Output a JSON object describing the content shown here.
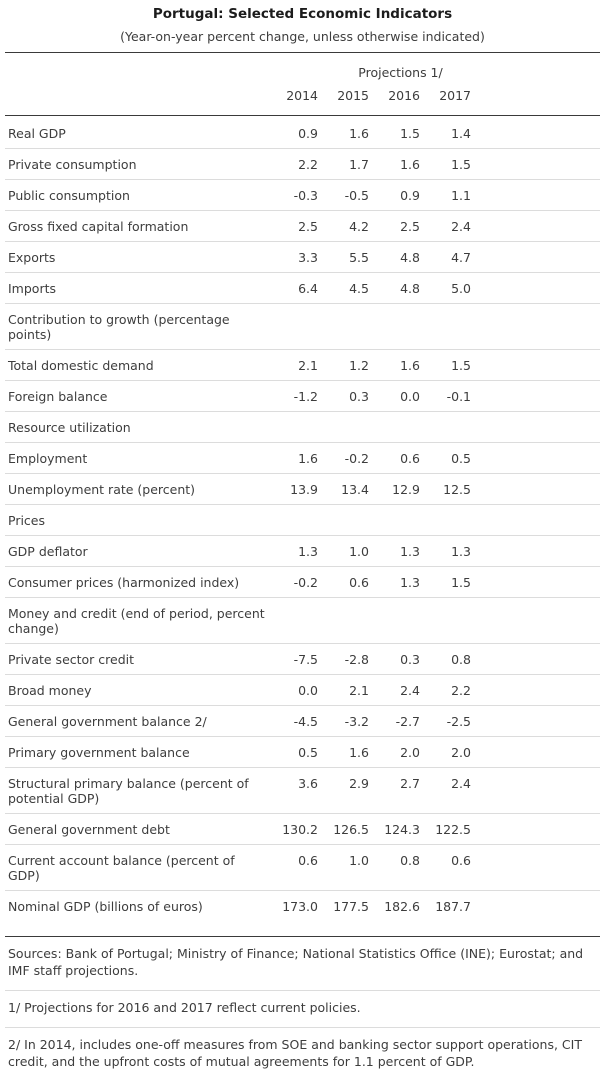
{
  "title": "Portugal: Selected Economic Indicators",
  "subtitle": "(Year-on-year percent change, unless otherwise indicated)",
  "table": {
    "projections_label": "Projections 1/",
    "years": [
      "2014",
      "2015",
      "2016",
      "2017"
    ],
    "rows": [
      {
        "label": "Real GDP",
        "values": [
          "0.9",
          "1.6",
          "1.5",
          "1.4"
        ]
      },
      {
        "label": "Private consumption",
        "values": [
          "2.2",
          "1.7",
          "1.6",
          "1.5"
        ]
      },
      {
        "label": "Public consumption",
        "values": [
          "-0.3",
          "-0.5",
          "0.9",
          "1.1"
        ]
      },
      {
        "label": "Gross fixed capital formation",
        "values": [
          "2.5",
          "4.2",
          "2.5",
          "2.4"
        ]
      },
      {
        "label": "Exports",
        "values": [
          "3.3",
          "5.5",
          "4.8",
          "4.7"
        ]
      },
      {
        "label": "Imports",
        "values": [
          "6.4",
          "4.5",
          "4.8",
          "5.0"
        ]
      },
      {
        "label": "Contribution to growth (percentage points)",
        "values": []
      },
      {
        "label": "Total domestic demand",
        "values": [
          "2.1",
          "1.2",
          "1.6",
          "1.5"
        ]
      },
      {
        "label": "Foreign balance",
        "values": [
          "-1.2",
          "0.3",
          "0.0",
          "-0.1"
        ]
      },
      {
        "label": "Resource utilization",
        "values": []
      },
      {
        "label": "Employment",
        "values": [
          "1.6",
          "-0.2",
          "0.6",
          "0.5"
        ]
      },
      {
        "label": "Unemployment rate (percent)",
        "values": [
          "13.9",
          "13.4",
          "12.9",
          "12.5"
        ]
      },
      {
        "label": "Prices",
        "values": []
      },
      {
        "label": "GDP deflator",
        "values": [
          "1.3",
          "1.0",
          "1.3",
          "1.3"
        ]
      },
      {
        "label": "Consumer prices (harmonized index)",
        "values": [
          "-0.2",
          "0.6",
          "1.3",
          "1.5"
        ]
      },
      {
        "label": "Money and credit (end of period, percent change)",
        "values": []
      },
      {
        "label": "Private sector credit",
        "values": [
          "-7.5",
          "-2.8",
          "0.3",
          "0.8"
        ]
      },
      {
        "label": "Broad money",
        "values": [
          "0.0",
          "2.1",
          "2.4",
          "2.2"
        ]
      },
      {
        "label": "General government balance 2/",
        "values": [
          "-4.5",
          "-3.2",
          "-2.7",
          "-2.5"
        ]
      },
      {
        "label": "Primary government balance",
        "values": [
          "0.5",
          "1.6",
          "2.0",
          "2.0"
        ]
      },
      {
        "label": "Structural primary balance (percent of potential GDP)",
        "values": [
          "3.6",
          "2.9",
          "2.7",
          "2.4"
        ]
      },
      {
        "label": "General government debt",
        "values": [
          "130.2",
          "126.5",
          "124.3",
          "122.5"
        ]
      },
      {
        "label": "Current account balance (percent of GDP)",
        "values": [
          "0.6",
          "1.0",
          "0.8",
          "0.6"
        ]
      },
      {
        "label": "Nominal GDP (billions of euros)",
        "values": [
          "173.0",
          "177.5",
          "182.6",
          "187.7"
        ]
      }
    ]
  },
  "footnotes": [
    "Sources: Bank of Portugal; Ministry of Finance; National Statistics Office (INE); Eurostat; and IMF staff projections.",
    "1/ Projections for 2016 and 2017 reflect current policies.",
    "2/ In 2014, includes one-off measures from SOE and banking sector support operations, CIT credit, and the upfront costs of mutual agreements for 1.1 percent of GDP."
  ]
}
